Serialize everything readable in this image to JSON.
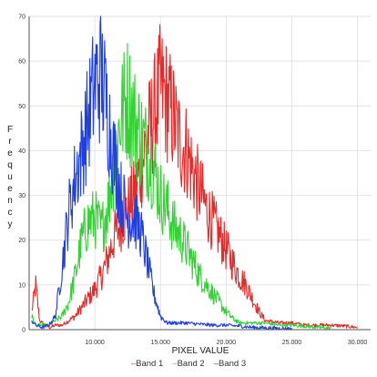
{
  "chart_data": {
    "type": "line",
    "title": "",
    "xlabel": "PIXEL VALUE",
    "ylabel": "Frequency",
    "xlim": [
      5.0,
      31.0
    ],
    "ylim": [
      0,
      70
    ],
    "x_ticks": [
      {
        "value": 10,
        "label": "10.000"
      },
      {
        "value": 15,
        "label": "15.000"
      },
      {
        "value": 20,
        "label": "20.000"
      },
      {
        "value": 25,
        "label": "25.000"
      },
      {
        "value": 30,
        "label": "30.000"
      }
    ],
    "y_ticks": [
      0,
      10,
      20,
      30,
      40,
      50,
      60,
      70
    ],
    "grid": true,
    "legend_position": "bottom",
    "series": [
      {
        "name": "Band 1",
        "color": "#e32b2b",
        "x": [
          5.2,
          5.5,
          5.8,
          6.2,
          6.6,
          7.0,
          7.5,
          8.0,
          8.5,
          9.0,
          9.5,
          10.0,
          10.5,
          11.0,
          11.5,
          12.0,
          12.5,
          13.0,
          13.5,
          14.0,
          14.5,
          15.0,
          15.5,
          16.0,
          16.5,
          17.0,
          17.5,
          18.0,
          18.5,
          19.0,
          19.5,
          20.0,
          20.5,
          21.0,
          21.5,
          22.0,
          22.5,
          23.0,
          24.0,
          25.0,
          26.0,
          27.0,
          28.0,
          29.0,
          30.0
        ],
        "y": [
          4,
          10,
          2,
          1,
          0.5,
          1,
          1,
          2,
          3,
          5,
          7,
          9,
          12,
          16,
          21,
          24,
          27,
          30,
          36,
          43,
          48,
          54,
          51,
          47,
          42,
          40,
          35,
          31,
          27,
          24,
          21,
          18,
          15,
          12,
          10,
          7,
          4,
          2,
          1.5,
          1.5,
          1,
          1,
          1,
          0.8,
          0.5
        ]
      },
      {
        "name": "Band 2",
        "color": "#36d136",
        "x": [
          5.2,
          5.5,
          6.0,
          6.5,
          7.0,
          7.5,
          8.0,
          8.5,
          9.0,
          9.5,
          10.0,
          10.5,
          11.0,
          11.5,
          12.0,
          12.5,
          13.0,
          13.5,
          14.0,
          14.5,
          15.0,
          15.5,
          16.0,
          16.5,
          17.0,
          17.5,
          18.0,
          18.5,
          19.0,
          19.5,
          20.0,
          20.5,
          21.0,
          22.0,
          23.0,
          24.0,
          25.0,
          26.0,
          27.0,
          28.0
        ],
        "y": [
          3,
          1,
          1,
          1,
          2,
          3,
          6,
          12,
          20,
          24,
          25,
          22,
          28,
          38,
          48,
          52,
          47,
          43,
          40,
          36,
          30,
          27,
          23,
          21,
          18,
          15,
          12,
          10,
          8,
          6,
          4,
          2.5,
          1.5,
          1.5,
          1.5,
          1,
          1,
          0.8,
          0.5,
          0.3
        ]
      },
      {
        "name": "Band 3",
        "color": "#1f3fe0",
        "x": [
          5.2,
          5.5,
          6.0,
          6.5,
          7.0,
          7.5,
          8.0,
          8.5,
          9.0,
          9.5,
          10.0,
          10.5,
          11.0,
          11.5,
          12.0,
          12.5,
          13.0,
          13.5,
          14.0,
          14.5,
          15.0,
          15.5,
          16.0,
          17.0,
          18.0,
          19.0,
          20.0,
          21.0,
          22.0,
          23.0,
          24.0,
          25.0
        ],
        "y": [
          2,
          1,
          0.5,
          1,
          3,
          14,
          26,
          34,
          40,
          47,
          55,
          57,
          48,
          38,
          30,
          25,
          25,
          22,
          15,
          8,
          3,
          1.5,
          1.5,
          1.5,
          1.2,
          1,
          1,
          0.8,
          0.5,
          0.4,
          0.3,
          0.2
        ]
      }
    ]
  }
}
